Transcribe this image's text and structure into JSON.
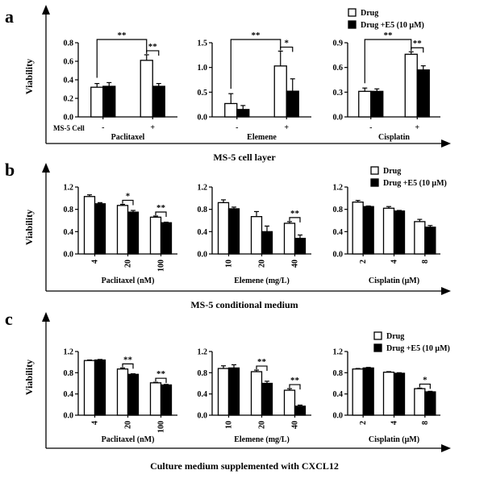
{
  "legend": {
    "drug": "Drug",
    "drug_e5": "Drug +E5 (10 μM)"
  },
  "sig_label_double": "**",
  "sig_label_single": "*",
  "chart_data": [
    {
      "panel_letter": "a",
      "section_caption": "MS-5 cell layer",
      "ylabel": "Viability",
      "row_label": "MS-5 Cell",
      "legend_shown": true,
      "charts": [
        {
          "type": "bar",
          "title": "",
          "xlabel": "Paclitaxel",
          "categories": [
            "-",
            "+"
          ],
          "ylim": [
            0,
            0.8
          ],
          "yticks": [
            "0.0",
            "0.2",
            "0.4",
            "0.6",
            "0.8"
          ],
          "series": [
            {
              "name": "Drug",
              "values": [
                0.32,
                0.61
              ],
              "errors": [
                0.04,
                0.06
              ]
            },
            {
              "name": "Drug +E5 (10 μM)",
              "values": [
                0.33,
                0.33
              ],
              "errors": [
                0.04,
                0.03
              ]
            }
          ],
          "annotations": [
            {
              "label": "**",
              "cross": true
            },
            {
              "label": "**",
              "cat": 1
            }
          ]
        },
        {
          "type": "bar",
          "title": "",
          "xlabel": "Elemene",
          "categories": [
            "-",
            "+"
          ],
          "ylim": [
            0,
            1.5
          ],
          "yticks": [
            "0.0",
            "0.5",
            "1.0",
            "1.5"
          ],
          "series": [
            {
              "name": "Drug",
              "values": [
                0.27,
                1.03
              ],
              "errors": [
                0.2,
                0.3
              ]
            },
            {
              "name": "Drug +E5 (10 μM)",
              "values": [
                0.15,
                0.52
              ],
              "errors": [
                0.08,
                0.25
              ]
            }
          ],
          "annotations": [
            {
              "label": "**",
              "cross": true
            },
            {
              "label": "*",
              "cat": 1
            }
          ]
        },
        {
          "type": "bar",
          "title": "",
          "xlabel": "Cisplatin",
          "categories": [
            "-",
            "+"
          ],
          "ylim": [
            0,
            0.9
          ],
          "yticks": [
            "0.0",
            "0.3",
            "0.6",
            "0.9"
          ],
          "series": [
            {
              "name": "Drug",
              "values": [
                0.31,
                0.76
              ],
              "errors": [
                0.04,
                0.03
              ]
            },
            {
              "name": "Drug +E5 (10 μM)",
              "values": [
                0.31,
                0.57
              ],
              "errors": [
                0.03,
                0.05
              ]
            }
          ],
          "annotations": [
            {
              "label": "**",
              "cross": true
            },
            {
              "label": "**",
              "cat": 1
            }
          ]
        }
      ]
    },
    {
      "panel_letter": "b",
      "section_caption": "MS-5 conditional medium",
      "ylabel": "Viability",
      "legend_shown": true,
      "charts": [
        {
          "type": "bar",
          "title": "",
          "xlabel": "Paclitaxel  (nM)",
          "categories": [
            "4",
            "20",
            "100"
          ],
          "ylim": [
            0,
            1.2
          ],
          "yticks": [
            "0.0",
            "0.4",
            "0.8",
            "1.2"
          ],
          "series": [
            {
              "name": "Drug",
              "values": [
                1.03,
                0.87,
                0.66
              ],
              "errors": [
                0.03,
                0.02,
                0.02
              ]
            },
            {
              "name": "Drug +E5 (10 μM)",
              "values": [
                0.9,
                0.75,
                0.56
              ],
              "errors": [
                0.02,
                0.03,
                0.01
              ]
            }
          ],
          "annotations": [
            {
              "label": "*",
              "cat": 1
            },
            {
              "label": "**",
              "cat": 2
            }
          ]
        },
        {
          "type": "bar",
          "title": "",
          "xlabel": "Elemene  (mg/L)",
          "categories": [
            "10",
            "20",
            "40"
          ],
          "ylim": [
            0,
            1.2
          ],
          "yticks": [
            "0.0",
            "0.4",
            "0.8",
            "1.2"
          ],
          "series": [
            {
              "name": "Drug",
              "values": [
                0.92,
                0.67,
                0.55
              ],
              "errors": [
                0.05,
                0.09,
                0.03
              ]
            },
            {
              "name": "Drug +E5 (10 μM)",
              "values": [
                0.81,
                0.4,
                0.28
              ],
              "errors": [
                0.03,
                0.1,
                0.06
              ]
            }
          ],
          "annotations": [
            {
              "label": "**",
              "cat": 2
            }
          ]
        },
        {
          "type": "bar",
          "title": "",
          "xlabel": "Cisplatin  (μM)",
          "categories": [
            "2",
            "4",
            "8"
          ],
          "ylim": [
            0,
            1.2
          ],
          "yticks": [
            "0.0",
            "0.4",
            "0.8",
            "1.2"
          ],
          "series": [
            {
              "name": "Drug",
              "values": [
                0.93,
                0.82,
                0.58
              ],
              "errors": [
                0.03,
                0.03,
                0.04
              ]
            },
            {
              "name": "Drug +E5 (10 μM)",
              "values": [
                0.85,
                0.77,
                0.48
              ],
              "errors": [
                0.01,
                0.01,
                0.03
              ]
            }
          ],
          "annotations": []
        }
      ]
    },
    {
      "panel_letter": "c",
      "section_caption": "Culture medium supplemented with CXCL12",
      "ylabel": "Viability",
      "legend_shown": true,
      "charts": [
        {
          "type": "bar",
          "title": "",
          "xlabel": "Paclitaxel  (nM)",
          "categories": [
            "4",
            "20",
            "100"
          ],
          "ylim": [
            0,
            1.2
          ],
          "yticks": [
            "0.0",
            "0.4",
            "0.8",
            "1.2"
          ],
          "series": [
            {
              "name": "Drug",
              "values": [
                1.03,
                0.87,
                0.61
              ],
              "errors": [
                0.01,
                0.02,
                0.01
              ]
            },
            {
              "name": "Drug +E5 (10 μM)",
              "values": [
                1.04,
                0.77,
                0.57
              ],
              "errors": [
                0.01,
                0.01,
                0.01
              ]
            }
          ],
          "annotations": [
            {
              "label": "**",
              "cat": 1
            },
            {
              "label": "**",
              "cat": 2
            }
          ]
        },
        {
          "type": "bar",
          "title": "",
          "xlabel": "Elemene  (mg/L)",
          "categories": [
            "10",
            "20",
            "40"
          ],
          "ylim": [
            0,
            1.2
          ],
          "yticks": [
            "0.0",
            "0.4",
            "0.8",
            "1.2"
          ],
          "series": [
            {
              "name": "Drug",
              "values": [
                0.88,
                0.82,
                0.47
              ],
              "errors": [
                0.05,
                0.03,
                0.03
              ]
            },
            {
              "name": "Drug +E5 (10 μM)",
              "values": [
                0.89,
                0.6,
                0.17
              ],
              "errors": [
                0.06,
                0.04,
                0.02
              ]
            }
          ],
          "annotations": [
            {
              "label": "**",
              "cat": 1
            },
            {
              "label": "**",
              "cat": 2
            }
          ]
        },
        {
          "type": "bar",
          "title": "",
          "xlabel": "Cisplatin  (μM)",
          "categories": [
            "2",
            "4",
            "8"
          ],
          "ylim": [
            0,
            1.2
          ],
          "yticks": [
            "0.0",
            "0.4",
            "0.8",
            "1.2"
          ],
          "series": [
            {
              "name": "Drug",
              "values": [
                0.87,
                0.81,
                0.5
              ],
              "errors": [
                0.01,
                0.01,
                0.01
              ]
            },
            {
              "name": "Drug +E5 (10 μM)",
              "values": [
                0.89,
                0.79,
                0.44
              ],
              "errors": [
                0.01,
                0.01,
                0.01
              ]
            }
          ],
          "annotations": [
            {
              "label": "*",
              "cat": 2
            }
          ]
        }
      ]
    }
  ]
}
